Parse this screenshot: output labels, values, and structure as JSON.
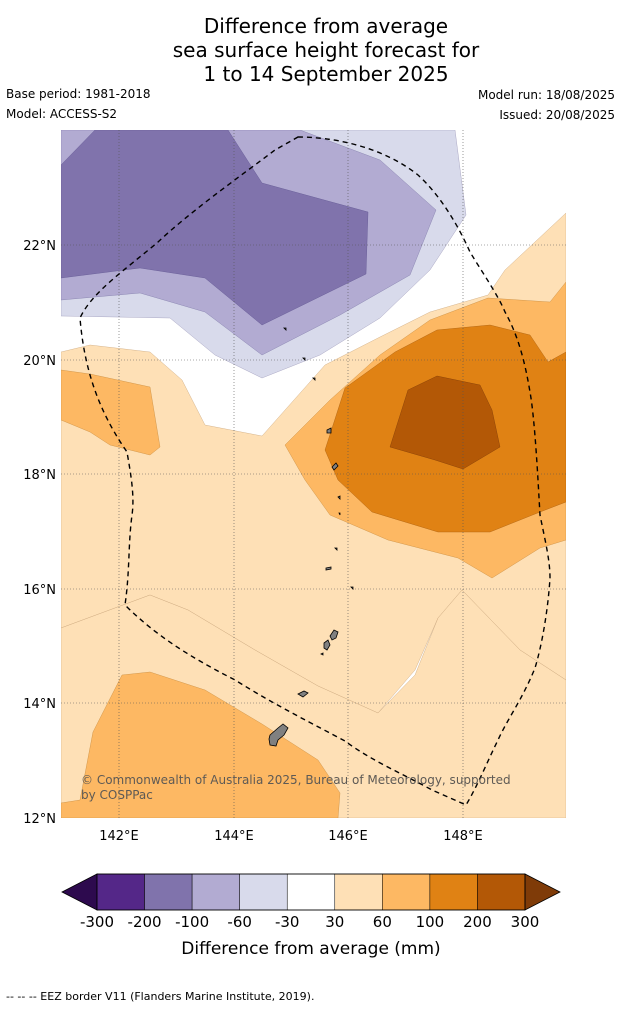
{
  "header": {
    "title_lines": [
      "Difference from average",
      "sea surface height forecast for",
      "1 to 14 September 2025"
    ],
    "base_period": "Base period: 1981-2018",
    "model": "Model: ACCESS-S2",
    "model_run": "Model run: 18/08/2025",
    "issued": "Issued: 20/08/2025"
  },
  "map": {
    "lat_labels": [
      "22°N",
      "20°N",
      "18°N",
      "16°N",
      "14°N",
      "12°N"
    ],
    "lon_labels": [
      "142°E",
      "144°E",
      "146°E",
      "148°E"
    ],
    "copyright": "© Commonwealth of Australia 2025, Bureau of Meteorology, supported by COSPPac",
    "copyright_line1": "© Commonwealth of Australia 2025, Bureau of Meteorology, supported",
    "copyright_line2": "by COSPPac"
  },
  "colorbar": {
    "ticks": [
      "-300",
      "-200",
      "-100",
      "-60",
      "-30",
      "30",
      "60",
      "100",
      "200",
      "300"
    ],
    "colors": [
      "#2d0a4e",
      "#542788",
      "#8073ac",
      "#b2abd2",
      "#d8daeb",
      "#ffffff",
      "#fee0b6",
      "#fdb863",
      "#e08214",
      "#b35806",
      "#7f3b08"
    ],
    "label": "Difference from average (mm)"
  },
  "footnote": "-- -- -- EEZ border V11 (Flanders Marine Institute, 2019)."
}
